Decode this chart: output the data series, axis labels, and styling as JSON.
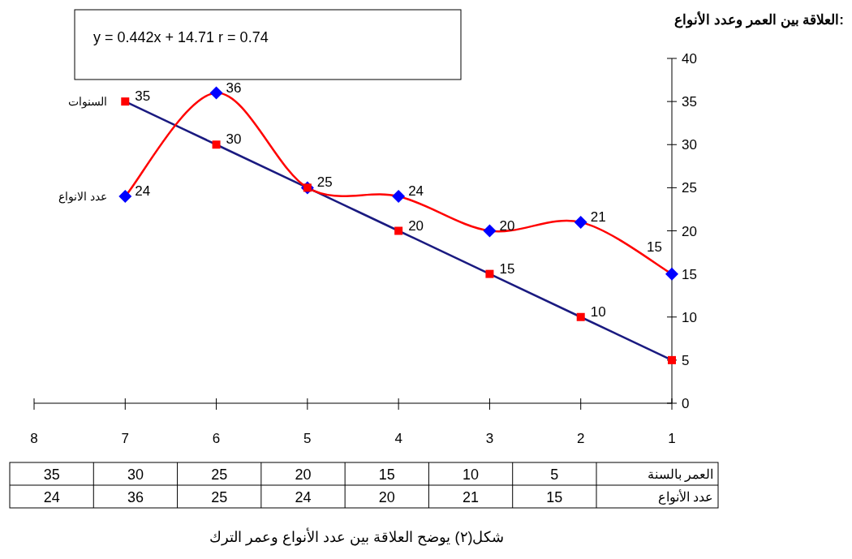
{
  "chart_data": {
    "type": "line",
    "title": "العلاقة بين العمر وعدد الأنواع:",
    "x": [
      7,
      6,
      5,
      4,
      3,
      2,
      1
    ],
    "xlim": [
      8,
      1
    ],
    "xticks": [
      8,
      7,
      6,
      5,
      4,
      3,
      2,
      1
    ],
    "ylim": [
      0,
      40
    ],
    "yticks": [
      0,
      5,
      10,
      15,
      20,
      25,
      30,
      35,
      40
    ],
    "series": [
      {
        "name": "السنوات",
        "color": "#1a1a80",
        "colors": [
          "#ff0000",
          "#ff0000",
          "#ff0000",
          "#ff0000",
          "#ff0000",
          "#ff0000",
          "#ff0000"
        ],
        "marker": "square",
        "values": [
          35,
          30,
          25,
          20,
          15,
          10,
          5
        ],
        "value_labels": [
          "35",
          "30",
          null,
          "20",
          "15",
          "10",
          null
        ]
      },
      {
        "name": "عدد الانواع",
        "color": "#ff0000",
        "colors": [
          "#0000ff",
          "#0000ff",
          "#0000ff",
          "#0000ff",
          "#0000ff",
          "#0000ff",
          "#0000ff"
        ],
        "marker": "diamond",
        "values": [
          24,
          36,
          25,
          24,
          20,
          21,
          15
        ],
        "value_labels": [
          "24",
          "36",
          "25",
          "24",
          "20",
          "21",
          "15"
        ]
      }
    ],
    "legend": false,
    "annotations": [
      "y = 0.442x + 14.71       r = 0.74",
      "شكل(٢) يوضح العلاقة بين عدد الأنواع وعمر الترك",
      "العمر بالسنة",
      "عدد الأنواع",
      "35",
      "30",
      "25",
      "20",
      "15",
      "10",
      "5",
      "24",
      "36",
      "25",
      "24",
      "20",
      "21",
      "15"
    ]
  }
}
